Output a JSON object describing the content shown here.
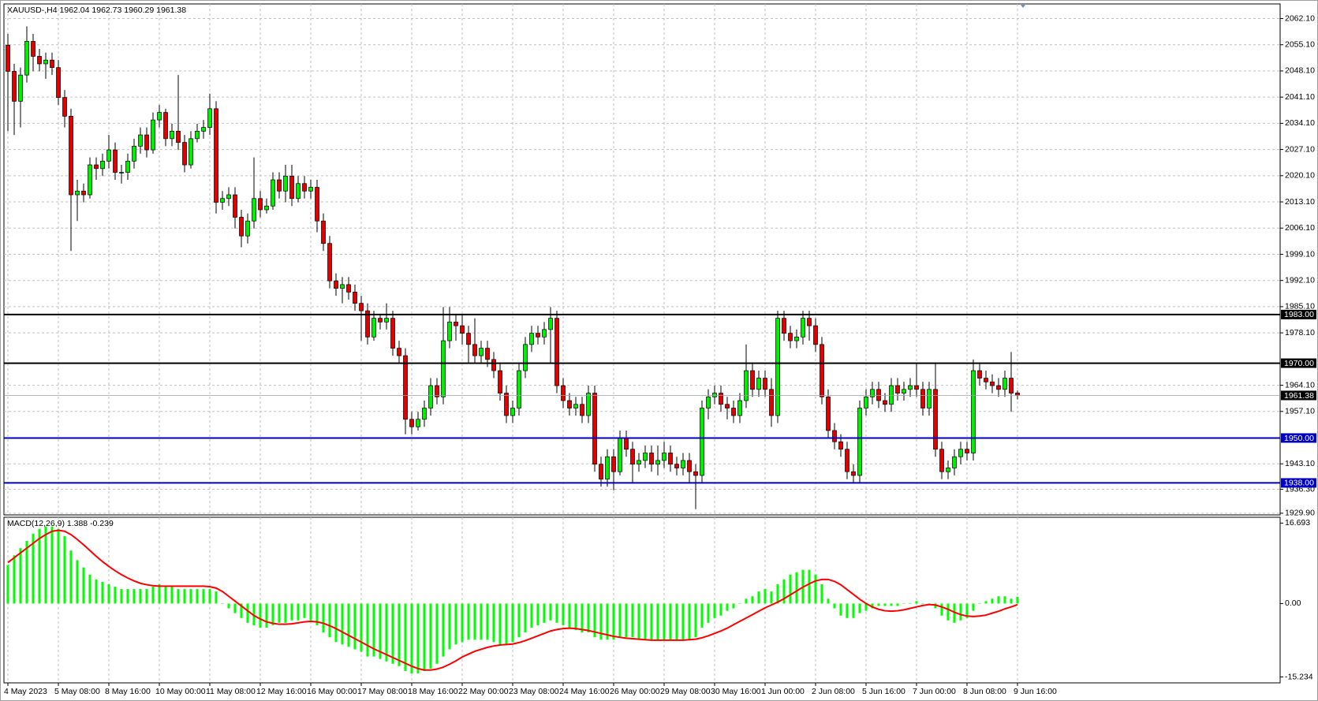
{
  "chart_data": [
    {
      "type": "candlestick",
      "title": "XAUUSD-,H4  1962.04 1962.73 1960.29 1961.38",
      "up_color": "#00ee00",
      "down_color": "#e00000",
      "wick_color": "#000000",
      "grid": true,
      "categories": [
        "4 May 2023",
        null,
        null,
        null,
        null,
        null,
        null,
        null,
        "5 May 08:00",
        null,
        null,
        null,
        null,
        null,
        null,
        null,
        "8 May 16:00",
        null,
        null,
        null,
        null,
        null,
        null,
        null,
        "10 May 00:00",
        null,
        null,
        null,
        null,
        null,
        null,
        null,
        "11 May 08:00",
        null,
        null,
        null,
        null,
        null,
        null,
        null,
        "12 May 16:00",
        null,
        null,
        null,
        null,
        null,
        null,
        null,
        "16 May 00:00",
        null,
        null,
        null,
        null,
        null,
        null,
        null,
        "17 May 08:00",
        null,
        null,
        null,
        null,
        null,
        null,
        null,
        "18 May 16:00",
        null,
        null,
        null,
        null,
        null,
        null,
        null,
        "22 May 00:00",
        null,
        null,
        null,
        null,
        null,
        null,
        null,
        "23 May 08:00",
        null,
        null,
        null,
        null,
        null,
        null,
        null,
        "24 May 16:00",
        null,
        null,
        null,
        null,
        null,
        null,
        null,
        "26 May 00:00",
        null,
        null,
        null,
        null,
        null,
        null,
        null,
        "29 May 08:00",
        null,
        null,
        null,
        null,
        null,
        null,
        null,
        "30 May 16:00",
        null,
        null,
        null,
        null,
        null,
        null,
        null,
        "1 Jun 00:00",
        null,
        null,
        null,
        null,
        null,
        null,
        null,
        "2 Jun 08:00",
        null,
        null,
        null,
        null,
        null,
        null,
        null,
        "5 Jun 16:00",
        null,
        null,
        null,
        null,
        null,
        null,
        null,
        "7 Jun 00:00",
        null,
        null,
        null,
        null,
        null,
        null,
        null,
        "8 Jun 08:00",
        null,
        null,
        null,
        null,
        null,
        null,
        null,
        "9 Jun 16:00"
      ],
      "open": [
        2055,
        2048,
        2040,
        2047,
        2056,
        2052,
        2050,
        2051,
        2049,
        2041,
        2036,
        2015,
        2016,
        2015,
        2023,
        2022,
        2024,
        2027,
        2021,
        2021,
        2024,
        2028,
        2031,
        2027,
        2035,
        2037,
        2030,
        2032,
        2029,
        2023,
        2030,
        2032,
        2033,
        2038,
        2013,
        2014,
        2015,
        2009,
        2004,
        2008,
        2014,
        2011,
        2012,
        2019,
        2016,
        2020,
        2014,
        2018,
        2016,
        2017,
        2008,
        2002,
        1992,
        1990,
        1991,
        1989,
        1986,
        1984,
        1977,
        1982,
        1981,
        1982,
        1974,
        1972,
        1955,
        1953,
        1955,
        1958,
        1964,
        1961,
        1976,
        1981,
        1980,
        1978,
        1975,
        1972,
        1974,
        1971,
        1968,
        1962,
        1956,
        1958,
        1968,
        1975,
        1978,
        1977,
        1979,
        1982,
        1964,
        1960,
        1958,
        1959,
        1956,
        1962,
        1943,
        1939,
        1945,
        1941,
        1950,
        1947,
        1943,
        1944,
        1946,
        1943,
        1944,
        1946,
        1943,
        1942,
        1944,
        1941,
        1940,
        1958,
        1961,
        1962,
        1959,
        1958,
        1956,
        1960,
        1968,
        1963,
        1966,
        1963,
        1956,
        1982,
        1978,
        1976,
        1977,
        1982,
        1980,
        1975,
        1961,
        1952,
        1949,
        1947,
        1941,
        1940,
        1958,
        1961,
        1963,
        1960,
        1959,
        1964,
        1962,
        1963,
        1964,
        1963,
        1958,
        1963,
        1947,
        1941,
        1942,
        1945,
        1947,
        1946,
        1968,
        1966,
        1965,
        1964,
        1963,
        1966,
        1962.04
      ],
      "high": [
        2058,
        2050,
        2049,
        2060,
        2058,
        2054,
        2053,
        2053,
        2051,
        2043,
        2038,
        2019,
        2018,
        2025,
        2025,
        2026,
        2031,
        2029,
        2023,
        2026,
        2030,
        2033,
        2033,
        2037,
        2039,
        2038,
        2034,
        2047,
        2031,
        2032,
        2034,
        2035,
        2042,
        2040,
        2016,
        2017,
        2017,
        2011,
        2010,
        2025,
        2016,
        2014,
        2021,
        2021,
        2023,
        2023,
        2020,
        2020,
        2019,
        2019,
        2010,
        2004,
        1994,
        1993,
        1993,
        1991,
        1988,
        1986,
        1984,
        1983,
        1986,
        1984,
        1976,
        1974,
        1957,
        1957,
        1960,
        1966,
        1966,
        1985,
        1985,
        1983,
        1983,
        1980,
        1982,
        1976,
        1976,
        1973,
        1970,
        1964,
        1960,
        1970,
        1977,
        1980,
        1980,
        1981,
        1985,
        1984,
        1966,
        1962,
        1961,
        1961,
        1964,
        1964,
        1945,
        1947,
        1947,
        1952,
        1952,
        1949,
        1946,
        1948,
        1948,
        1948,
        1949,
        1948,
        1945,
        1946,
        1946,
        1943,
        1960,
        1963,
        1964,
        1964,
        1961,
        1960,
        1962,
        1975,
        1970,
        1968,
        1968,
        1966,
        1984,
        1984,
        1980,
        1979,
        1984,
        1984,
        1982,
        1977,
        1963,
        1954,
        1951,
        1949,
        1943,
        1960,
        1963,
        1965,
        1965,
        1962,
        1966,
        1966,
        1965,
        1966,
        1970,
        1965,
        1965,
        1970,
        1949,
        1944,
        1947,
        1949,
        1949,
        1971,
        1970,
        1968,
        1967,
        1966,
        1968,
        1973,
        1962.73
      ],
      "low": [
        2032,
        2031,
        2033,
        2045,
        2048,
        2048,
        2046,
        2047,
        2039,
        2033,
        2000,
        2008,
        2013,
        2014,
        2019,
        2020,
        2022,
        2019,
        2018,
        2019,
        2022,
        2026,
        2025,
        2026,
        2033,
        2028,
        2028,
        2027,
        2021,
        2022,
        2029,
        2030,
        2031,
        2010,
        2011,
        2012,
        2006,
        2001,
        2002,
        2006,
        2009,
        2010,
        2011,
        2014,
        2013,
        2012,
        2013,
        2014,
        2014,
        2005,
        2000,
        1990,
        1988,
        1986,
        1987,
        1984,
        1976,
        1975,
        1976,
        1979,
        1979,
        1972,
        1970,
        1951,
        1951,
        1952,
        1953,
        1956,
        1959,
        1959,
        1974,
        1976,
        1975,
        1970,
        1970,
        1970,
        1969,
        1966,
        1960,
        1954,
        1954,
        1956,
        1966,
        1973,
        1975,
        1975,
        1970,
        1962,
        1958,
        1956,
        1956,
        1954,
        1954,
        1941,
        1937,
        1937,
        1936,
        1940,
        1945,
        1938,
        1941,
        1942,
        1941,
        1940,
        1942,
        1941,
        1940,
        1940,
        1938,
        1931,
        1938,
        1955,
        1959,
        1957,
        1955,
        1954,
        1954,
        1958,
        1961,
        1961,
        1961,
        1953,
        1954,
        1976,
        1974,
        1974,
        1975,
        1976,
        1973,
        1959,
        1950,
        1947,
        1945,
        1939,
        1938,
        1938,
        1956,
        1959,
        1958,
        1957,
        1957,
        1960,
        1960,
        1961,
        1961,
        1956,
        1956,
        1945,
        1939,
        1939,
        1940,
        1943,
        1944,
        1944,
        1964,
        1963,
        1962,
        1961,
        1961,
        1957,
        1960.29
      ],
      "close": [
        2048,
        2040,
        2047,
        2056,
        2052,
        2050,
        2051,
        2049,
        2041,
        2036,
        2015,
        2016,
        2015,
        2023,
        2022,
        2024,
        2027,
        2021,
        2021,
        2024,
        2028,
        2031,
        2027,
        2035,
        2037,
        2030,
        2032,
        2029,
        2023,
        2030,
        2032,
        2033,
        2038,
        2013,
        2014,
        2015,
        2009,
        2004,
        2008,
        2014,
        2011,
        2012,
        2019,
        2016,
        2020,
        2014,
        2018,
        2016,
        2017,
        2008,
        2002,
        1992,
        1990,
        1991,
        1989,
        1986,
        1984,
        1977,
        1982,
        1981,
        1982,
        1974,
        1972,
        1955,
        1953,
        1955,
        1958,
        1964,
        1961,
        1976,
        1981,
        1980,
        1978,
        1975,
        1972,
        1974,
        1971,
        1968,
        1962,
        1956,
        1958,
        1968,
        1975,
        1978,
        1977,
        1979,
        1982,
        1964,
        1960,
        1958,
        1959,
        1956,
        1962,
        1943,
        1939,
        1945,
        1941,
        1950,
        1947,
        1943,
        1944,
        1946,
        1943,
        1944,
        1946,
        1943,
        1942,
        1944,
        1941,
        1940,
        1958,
        1961,
        1962,
        1959,
        1958,
        1956,
        1960,
        1968,
        1963,
        1966,
        1963,
        1956,
        1982,
        1978,
        1976,
        1977,
        1982,
        1980,
        1975,
        1961,
        1952,
        1949,
        1947,
        1941,
        1940,
        1958,
        1961,
        1963,
        1960,
        1959,
        1964,
        1962,
        1963,
        1964,
        1963,
        1958,
        1963,
        1947,
        1941,
        1942,
        1945,
        1947,
        1946,
        1968,
        1966,
        1965,
        1964,
        1963,
        1966,
        1962,
        1961.38
      ],
      "ylim": [
        1929.45,
        2066
      ],
      "yticks": [
        {
          "value": 2062.1,
          "label": "2062.10"
        },
        {
          "value": 2055.1,
          "label": "2055.10"
        },
        {
          "value": 2048.1,
          "label": "2048.10"
        },
        {
          "value": 2041.1,
          "label": "2041.10"
        },
        {
          "value": 2034.1,
          "label": "2034.10"
        },
        {
          "value": 2027.1,
          "label": "2027.10"
        },
        {
          "value": 2020.1,
          "label": "2020.10"
        },
        {
          "value": 2013.1,
          "label": "2013.10"
        },
        {
          "value": 2006.1,
          "label": "2006.10"
        },
        {
          "value": 1999.1,
          "label": "1999.10"
        },
        {
          "value": 1992.1,
          "label": "1992.10"
        },
        {
          "value": 1985.1,
          "label": "1985.10"
        },
        {
          "value": 1978.1,
          "label": "1978.10"
        },
        {
          "value": 1964.1,
          "label": "1964.10"
        },
        {
          "value": 1957.1,
          "label": "1957.10"
        },
        {
          "value": 1943.1,
          "label": "1943.10"
        },
        {
          "value": 1936.3,
          "label": "1936.30"
        },
        {
          "value": 1929.9,
          "label": "1929.90"
        }
      ],
      "levels": [
        {
          "value": 1983,
          "label": "1983.00",
          "color": "#000000"
        },
        {
          "value": 1970,
          "label": "1970.00",
          "color": "#000000"
        },
        {
          "value": 1950,
          "label": "1950.00",
          "color": "#0000c0"
        },
        {
          "value": 1938,
          "label": "1938.00",
          "color": "#0000c0"
        }
      ],
      "last_price": 1961.38
    },
    {
      "type": "macd",
      "title": "MACD(12,26,9) 1.388 -0.239",
      "bars": {
        "color": "#00ff00",
        "values": [
          8,
          10,
          11.5,
          13,
          14.5,
          15.5,
          16,
          16,
          15.5,
          14,
          11,
          9,
          7.5,
          6,
          5,
          4.5,
          4,
          3.5,
          3,
          3,
          3,
          3,
          3,
          3.5,
          4,
          3.5,
          3.5,
          3,
          3,
          3,
          3,
          3,
          3,
          2.5,
          0,
          -1,
          -2,
          -3,
          -4,
          -4.5,
          -5,
          -5,
          -4.5,
          -4,
          -4,
          -3.5,
          -3.5,
          -3,
          -3.5,
          -4.5,
          -6,
          -7,
          -8,
          -8.5,
          -9,
          -9.5,
          -10,
          -11,
          -11,
          -11.5,
          -12,
          -12.5,
          -13,
          -14,
          -14.5,
          -14.5,
          -14,
          -13.5,
          -12.5,
          -11,
          -9.5,
          -8.5,
          -8,
          -7.5,
          -7.5,
          -7.5,
          -7.5,
          -8,
          -8.5,
          -8.5,
          -8,
          -7,
          -6,
          -5,
          -4.5,
          -4,
          -3.5,
          -4,
          -4.5,
          -5,
          -5.5,
          -6,
          -6,
          -7,
          -7.5,
          -7.5,
          -7.5,
          -7,
          -7,
          -7,
          -7.5,
          -7.5,
          -7.5,
          -7.5,
          -7.5,
          -7.5,
          -7.5,
          -7.5,
          -7.5,
          -7,
          -5,
          -4,
          -3,
          -2.5,
          -1.5,
          -1,
          0,
          1,
          1.5,
          2.5,
          3,
          2.5,
          4,
          5,
          6,
          6.5,
          7,
          7,
          6,
          4,
          1,
          -1,
          -2.5,
          -3,
          -3,
          -2,
          -1.5,
          -1,
          -0.5,
          -0.5,
          -0.5,
          -0.5,
          0,
          0,
          0.5,
          0,
          0,
          -1,
          -2.5,
          -3.5,
          -4,
          -3.5,
          -3,
          -1.5,
          0,
          0.5,
          1,
          1.5,
          1.5,
          1,
          1.388
        ]
      },
      "line": {
        "color": "#ff0000",
        "values": [
          8.5,
          9.5,
          10.5,
          11.5,
          12.5,
          13.5,
          14.3,
          15,
          15.2,
          15,
          14.3,
          13.3,
          12.2,
          11,
          9.8,
          8.7,
          7.7,
          6.8,
          6,
          5.3,
          4.7,
          4.2,
          3.9,
          3.7,
          3.6,
          3.6,
          3.6,
          3.6,
          3.6,
          3.6,
          3.6,
          3.6,
          3.5,
          3.2,
          2.5,
          1.5,
          0.5,
          -0.5,
          -1.5,
          -2.5,
          -3.2,
          -3.8,
          -4.1,
          -4.3,
          -4.3,
          -4.2,
          -4,
          -3.8,
          -3.7,
          -3.8,
          -4.1,
          -4.6,
          -5.2,
          -5.9,
          -6.6,
          -7.3,
          -8,
          -8.7,
          -9.4,
          -10,
          -10.6,
          -11.2,
          -11.8,
          -12.4,
          -13,
          -13.5,
          -13.8,
          -13.8,
          -13.6,
          -13.2,
          -12.6,
          -11.9,
          -11.1,
          -10.5,
          -9.9,
          -9.5,
          -9.1,
          -8.8,
          -8.6,
          -8.5,
          -8.4,
          -8.1,
          -7.7,
          -7.2,
          -6.7,
          -6.2,
          -5.7,
          -5.4,
          -5.2,
          -5.1,
          -5.2,
          -5.4,
          -5.6,
          -5.9,
          -6.2,
          -6.5,
          -6.8,
          -7,
          -7.2,
          -7.3,
          -7.4,
          -7.5,
          -7.6,
          -7.6,
          -7.6,
          -7.6,
          -7.6,
          -7.6,
          -7.5,
          -7.4,
          -7.1,
          -6.7,
          -6.2,
          -5.7,
          -5.1,
          -4.4,
          -3.7,
          -3,
          -2.3,
          -1.6,
          -0.9,
          -0.3,
          0.3,
          1,
          1.8,
          2.6,
          3.4,
          4.1,
          4.7,
          5,
          5,
          4.6,
          3.9,
          2.9,
          1.9,
          0.9,
          0,
          -0.7,
          -1.2,
          -1.5,
          -1.6,
          -1.5,
          -1.3,
          -1,
          -0.7,
          -0.4,
          -0.2,
          -0.3,
          -0.7,
          -1.2,
          -1.8,
          -2.3,
          -2.6,
          -2.7,
          -2.6,
          -2.4,
          -2,
          -1.6,
          -1.1,
          -0.7,
          -0.239
        ]
      },
      "ylim": [
        -16.46,
        17.9
      ],
      "yticks": [
        16.693,
        {
          "value": 0,
          "label": "0.00"
        },
        -15.234
      ]
    }
  ]
}
